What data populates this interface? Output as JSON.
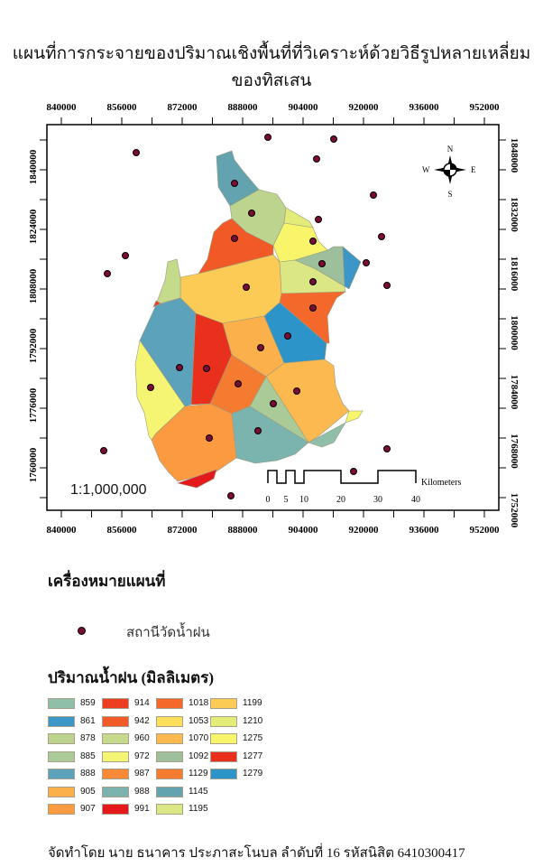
{
  "title": "แผนที่การกระจายของปริมาณเชิงพื้นที่ที่วิเคราะห์ด้วยวิธีรูปหลายเหลี่ยมของทิสเสน",
  "map": {
    "x_ticks": [
      "840000",
      "856000",
      "872000",
      "888000",
      "904000",
      "920000",
      "936000",
      "952000"
    ],
    "y_ticks_left": [
      "1840000",
      "1824000",
      "1808000",
      "1792000",
      "1776000",
      "1760000"
    ],
    "y_ticks_right": [
      "1848000",
      "1832000",
      "1816000",
      "1800000",
      "1784000",
      "1768000",
      "1752000"
    ],
    "scale_ratio": "1:1,000,000",
    "scale_bar": {
      "labels": [
        "0",
        "5",
        "10",
        "20",
        "30",
        "40"
      ],
      "unit": "Kilometers"
    },
    "north_arrow": {
      "n": "N",
      "s": "S",
      "e": "E",
      "w": "W"
    },
    "station_color": "#7a0e32"
  },
  "legend": {
    "heading": "เครื่องหมายแผนที่",
    "station_label": "สถานีวัดน้ำฝน",
    "rainfall_heading": "ปริมาณน้ำฝน (มิลลิเมตร)",
    "items": [
      {
        "value": "859",
        "color": "#8fbfa8"
      },
      {
        "value": "861",
        "color": "#3d96c8"
      },
      {
        "value": "878",
        "color": "#bcd48e"
      },
      {
        "value": "885",
        "color": "#aacb98"
      },
      {
        "value": "888",
        "color": "#5ba2ba"
      },
      {
        "value": "905",
        "color": "#fbb04c"
      },
      {
        "value": "907",
        "color": "#fb9a40"
      },
      {
        "value": "914",
        "color": "#ec3f22"
      },
      {
        "value": "942",
        "color": "#f15a26"
      },
      {
        "value": "960",
        "color": "#c5db8c"
      },
      {
        "value": "972",
        "color": "#f5f573"
      },
      {
        "value": "987",
        "color": "#f98a35"
      },
      {
        "value": "988",
        "color": "#7bb3ae"
      },
      {
        "value": "991",
        "color": "#e4191c"
      },
      {
        "value": "1018",
        "color": "#f4682c"
      },
      {
        "value": "1053",
        "color": "#fbde5a"
      },
      {
        "value": "1070",
        "color": "#fbb94f"
      },
      {
        "value": "1092",
        "color": "#9dbf9b"
      },
      {
        "value": "1129",
        "color": "#f47b30"
      },
      {
        "value": "1145",
        "color": "#63a3b0"
      },
      {
        "value": "1195",
        "color": "#dbe685"
      },
      {
        "value": "1199",
        "color": "#fccb55"
      },
      {
        "value": "1210",
        "color": "#e3eb79"
      },
      {
        "value": "1275",
        "color": "#f8f56b"
      },
      {
        "value": "1277",
        "color": "#e8301c"
      },
      {
        "value": "1279",
        "color": "#2c94c8"
      }
    ]
  },
  "footer": "จัดทำโดย นาย ธนาคาร ประภาสะโนบล ลำดับที่ 16 รหัสนิสิต 6410300417"
}
